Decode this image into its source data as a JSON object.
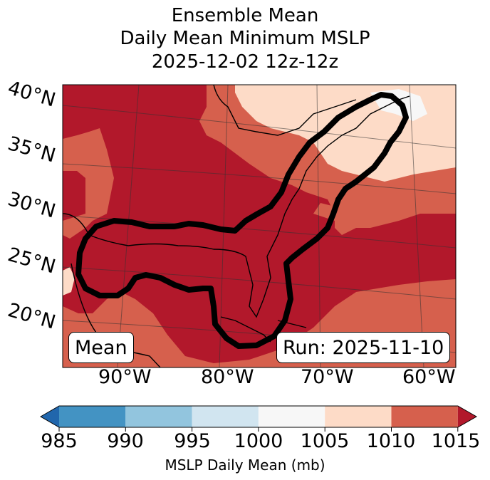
{
  "title": {
    "line1": "Ensemble Mean",
    "line2": "Daily Mean Minimum MSLP",
    "line3": "2025-12-02 12z-12z"
  },
  "map": {
    "lat_labels": [
      "40°N",
      "35°N",
      "30°N",
      "25°N",
      "20°N"
    ],
    "lon_labels": [
      "90°W",
      "80°W",
      "70°W",
      "60°W"
    ],
    "left_box": "Mean",
    "right_box": "Run: 2025-11-10",
    "colors": {
      "c1015": "#b2182b",
      "c1010": "#d6604d",
      "c1005": "#fddbc7",
      "c1000": "#f7f7f7"
    }
  },
  "colorbar": {
    "title": "MSLP Daily Mean (mb)",
    "ticks": [
      "985",
      "990",
      "995",
      "1000",
      "1005",
      "1010",
      "1015"
    ],
    "colors": [
      "#2166ac",
      "#4393c3",
      "#92c5de",
      "#d1e5f0",
      "#f7f7f7",
      "#fddbc7",
      "#d6604d",
      "#b2182b"
    ]
  }
}
